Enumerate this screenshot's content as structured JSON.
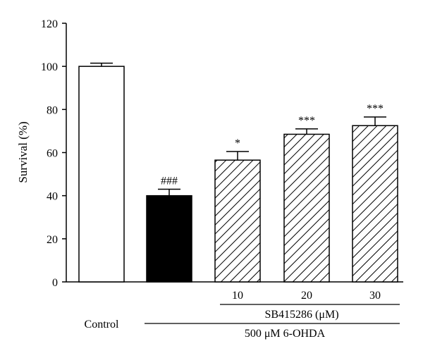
{
  "chart_data": {
    "type": "bar",
    "ylabel": "Survival (%)",
    "ylim": [
      0,
      120
    ],
    "yticks": [
      0,
      20,
      40,
      60,
      80,
      100,
      120
    ],
    "grid": false,
    "legend": "none",
    "bars": [
      {
        "label": "Control",
        "value": 100,
        "error": 1.5,
        "annotation": "",
        "fill": "white"
      },
      {
        "label": "",
        "value": 40,
        "error": 3,
        "annotation": "###",
        "fill": "black"
      },
      {
        "label": "10",
        "value": 56.5,
        "error": 4,
        "annotation": "*",
        "fill": "hatched"
      },
      {
        "label": "20",
        "value": 68.5,
        "error": 2.5,
        "annotation": "***",
        "fill": "hatched"
      },
      {
        "label": "30",
        "value": 72.5,
        "error": 4,
        "annotation": "***",
        "fill": "hatched"
      }
    ],
    "group_labels": {
      "sb_label": "SB415286 (μM)",
      "ohda_label": "500 μM 6-OHDA"
    }
  },
  "colors": {
    "axis": "#000000",
    "bar_outline": "#000000",
    "black_fill": "#000000",
    "white_fill": "#ffffff"
  }
}
